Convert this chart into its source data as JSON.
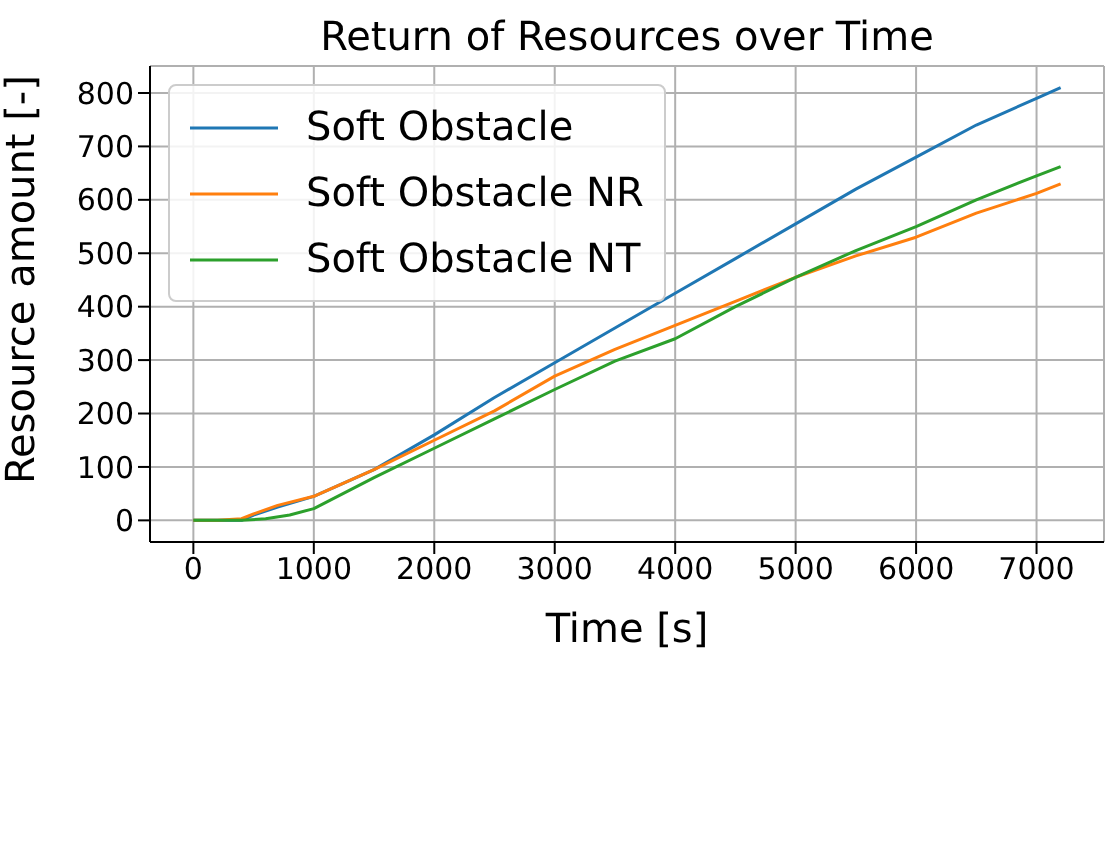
{
  "chart_data": {
    "type": "line",
    "title": "Return of Resources over Time",
    "xlabel": "Time [s]",
    "ylabel": "Resource amount [-]",
    "xlim": [
      -360,
      7560
    ],
    "xticks": [
      0,
      1000,
      2000,
      3000,
      4000,
      5000,
      6000,
      7000
    ],
    "ylim": [
      -40.5,
      850.5
    ],
    "yticks": [
      0,
      100,
      200,
      300,
      400,
      500,
      600,
      700,
      800
    ],
    "grid": true,
    "legend": "top left",
    "marker": "none",
    "line_style": "solid",
    "series": [
      {
        "name": "Soft Obstacle",
        "color": "#1f77b4",
        "x": [
          0,
          200,
          400,
          500,
          700,
          1000,
          1500,
          2000,
          2500,
          3000,
          3500,
          4000,
          4500,
          5000,
          5500,
          6000,
          6500,
          7000,
          7200
        ],
        "values": [
          0,
          0,
          0,
          10,
          25,
          45,
          95,
          160,
          230,
          295,
          360,
          425,
          490,
          555,
          620,
          680,
          740,
          790,
          810
        ]
      },
      {
        "name": "Soft Obstacle NR",
        "color": "#ff7f0e",
        "x": [
          0,
          200,
          400,
          500,
          700,
          1000,
          1500,
          2000,
          2500,
          3000,
          3500,
          4000,
          4500,
          5000,
          5500,
          6000,
          6500,
          7000,
          7200
        ],
        "values": [
          0,
          0,
          3,
          12,
          28,
          45,
          95,
          150,
          205,
          270,
          320,
          365,
          410,
          455,
          495,
          530,
          575,
          612,
          630
        ]
      },
      {
        "name": "Soft Obstacle NT",
        "color": "#2ca02c",
        "x": [
          0,
          200,
          400,
          600,
          800,
          1000,
          1500,
          2000,
          2500,
          3000,
          3500,
          4000,
          4500,
          5000,
          5500,
          6000,
          6500,
          7000,
          7200
        ],
        "values": [
          0,
          0,
          0,
          3,
          10,
          22,
          80,
          135,
          190,
          245,
          298,
          340,
          400,
          455,
          505,
          550,
          600,
          645,
          662
        ]
      }
    ]
  }
}
